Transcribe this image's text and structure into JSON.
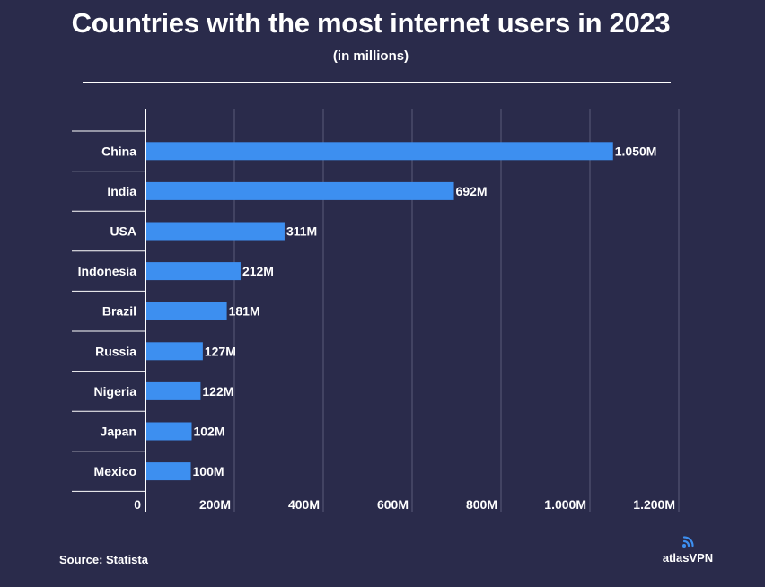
{
  "header": {
    "title": "Countries with the most internet users in 2023",
    "subtitle": "(in millions)"
  },
  "footer": {
    "source": "Source: Statista",
    "brand": "atlasVPN"
  },
  "colors": {
    "background": "#2a2b4b",
    "bar": "#3d8ff0",
    "text": "#ffffff",
    "grid": "#5a5b78"
  },
  "chart_data": {
    "type": "bar",
    "orientation": "horizontal",
    "title": "Countries with the most internet users in 2023",
    "subtitle": "(in millions)",
    "categories": [
      "China",
      "India",
      "USA",
      "Indonesia",
      "Brazil",
      "Russia",
      "Nigeria",
      "Japan",
      "Mexico"
    ],
    "values": [
      1050,
      692,
      311,
      212,
      181,
      127,
      122,
      102,
      100
    ],
    "value_labels": [
      "1.050M",
      "692M",
      "311M",
      "212M",
      "181M",
      "127M",
      "122M",
      "102M",
      "100M"
    ],
    "xticks": [
      0,
      200,
      400,
      600,
      800,
      1000,
      1200
    ],
    "xtick_labels": [
      "0",
      "200M",
      "400M",
      "600M",
      "800M",
      "1.000M",
      "1.200M"
    ],
    "xlim": [
      0,
      1200
    ],
    "grid": true
  }
}
